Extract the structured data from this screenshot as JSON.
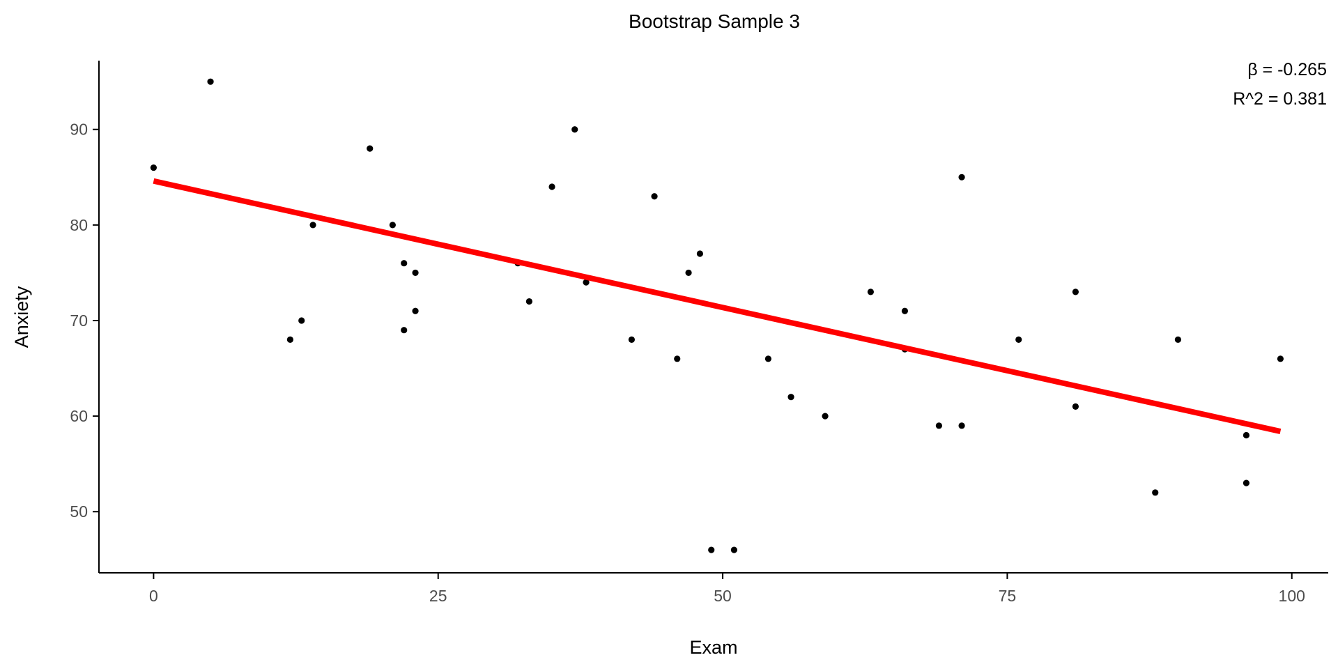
{
  "chart_data": {
    "type": "scatter",
    "title": "Bootstrap Sample 3",
    "xlabel": "Exam",
    "ylabel": "Anxiety",
    "xlim": [
      -4.8,
      103.2
    ],
    "ylim": [
      43.6,
      97.2
    ],
    "xticks": [
      0,
      25,
      50,
      75,
      100
    ],
    "yticks": [
      50,
      60,
      70,
      80,
      90
    ],
    "grid": false,
    "legend": "none",
    "annotations": [
      "β = -0.265",
      "R^2 = 0.381"
    ],
    "point_color": "#000000",
    "line_color": "#ff0000",
    "points": [
      {
        "x": 0,
        "y": 86
      },
      {
        "x": 5,
        "y": 95
      },
      {
        "x": 12,
        "y": 68
      },
      {
        "x": 13,
        "y": 70
      },
      {
        "x": 14,
        "y": 80
      },
      {
        "x": 19,
        "y": 88
      },
      {
        "x": 21,
        "y": 80
      },
      {
        "x": 22,
        "y": 76
      },
      {
        "x": 22,
        "y": 69
      },
      {
        "x": 23,
        "y": 75
      },
      {
        "x": 23,
        "y": 71
      },
      {
        "x": 32,
        "y": 76
      },
      {
        "x": 33,
        "y": 72
      },
      {
        "x": 35,
        "y": 84
      },
      {
        "x": 37,
        "y": 90
      },
      {
        "x": 38,
        "y": 74
      },
      {
        "x": 42,
        "y": 68
      },
      {
        "x": 44,
        "y": 83
      },
      {
        "x": 46,
        "y": 66
      },
      {
        "x": 47,
        "y": 75
      },
      {
        "x": 48,
        "y": 77
      },
      {
        "x": 49,
        "y": 46
      },
      {
        "x": 51,
        "y": 46
      },
      {
        "x": 54,
        "y": 66
      },
      {
        "x": 56,
        "y": 62
      },
      {
        "x": 59,
        "y": 60
      },
      {
        "x": 63,
        "y": 73
      },
      {
        "x": 66,
        "y": 71
      },
      {
        "x": 66,
        "y": 67
      },
      {
        "x": 69,
        "y": 59
      },
      {
        "x": 71,
        "y": 85
      },
      {
        "x": 71,
        "y": 59
      },
      {
        "x": 76,
        "y": 68
      },
      {
        "x": 81,
        "y": 73
      },
      {
        "x": 81,
        "y": 61
      },
      {
        "x": 88,
        "y": 52
      },
      {
        "x": 90,
        "y": 68
      },
      {
        "x": 96,
        "y": 58
      },
      {
        "x": 96,
        "y": 53
      },
      {
        "x": 99,
        "y": 66
      }
    ],
    "fit_line": {
      "x": [
        0,
        99
      ],
      "y": [
        84.6,
        58.4
      ]
    }
  }
}
